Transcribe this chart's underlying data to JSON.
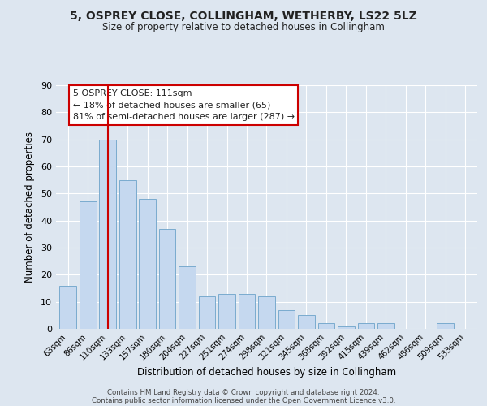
{
  "title": "5, OSPREY CLOSE, COLLINGHAM, WETHERBY, LS22 5LZ",
  "subtitle": "Size of property relative to detached houses in Collingham",
  "xlabel": "Distribution of detached houses by size in Collingham",
  "ylabel": "Number of detached properties",
  "bar_labels": [
    "63sqm",
    "86sqm",
    "110sqm",
    "133sqm",
    "157sqm",
    "180sqm",
    "204sqm",
    "227sqm",
    "251sqm",
    "274sqm",
    "298sqm",
    "321sqm",
    "345sqm",
    "368sqm",
    "392sqm",
    "415sqm",
    "439sqm",
    "462sqm",
    "486sqm",
    "509sqm",
    "533sqm"
  ],
  "bar_values": [
    16,
    47,
    70,
    55,
    48,
    37,
    23,
    12,
    13,
    13,
    12,
    7,
    5,
    2,
    1,
    2,
    2,
    0,
    0,
    2,
    0
  ],
  "bar_color": "#c5d8ef",
  "bar_edge_color": "#7aabcf",
  "background_color": "#dde6f0",
  "grid_color": "#ffffff",
  "vline_x": 2,
  "vline_color": "#cc0000",
  "ylim": [
    0,
    90
  ],
  "yticks": [
    0,
    10,
    20,
    30,
    40,
    50,
    60,
    70,
    80,
    90
  ],
  "annotation_title": "5 OSPREY CLOSE: 111sqm",
  "annotation_line1": "← 18% of detached houses are smaller (65)",
  "annotation_line2": "81% of semi-detached houses are larger (287) →",
  "annotation_box_color": "#cc0000",
  "footer1": "Contains HM Land Registry data © Crown copyright and database right 2024.",
  "footer2": "Contains public sector information licensed under the Open Government Licence v3.0."
}
